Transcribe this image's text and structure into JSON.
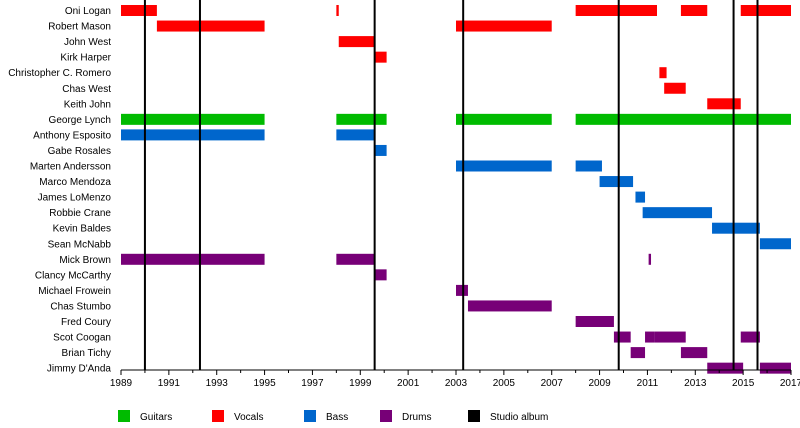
{
  "chart_data": {
    "type": "timeline",
    "title": "",
    "x_axis": {
      "min": 1989,
      "max": 2017,
      "ticks": [
        1989,
        1991,
        1993,
        1995,
        1997,
        1999,
        2001,
        2003,
        2005,
        2007,
        2009,
        2011,
        2013,
        2015,
        2017
      ]
    },
    "colors": {
      "Guitars": "#00bb00",
      "Vocals": "#ff0000",
      "Bass": "#0066cc",
      "Drums": "#770077",
      "Studio album": "#000000"
    },
    "members": [
      {
        "name": "Oni Logan",
        "bars": [
          {
            "role": "Vocals",
            "start": 1989.0,
            "end": 1990.5
          },
          {
            "role": "Vocals",
            "start": 1998.0,
            "end": 1998.1
          },
          {
            "role": "Vocals",
            "start": 2008.0,
            "end": 2011.4
          },
          {
            "role": "Vocals",
            "start": 2012.4,
            "end": 2013.5
          },
          {
            "role": "Vocals",
            "start": 2014.9,
            "end": 2017.0
          }
        ]
      },
      {
        "name": "Robert Mason",
        "bars": [
          {
            "role": "Vocals",
            "start": 1990.5,
            "end": 1995.0
          },
          {
            "role": "Vocals",
            "start": 2003.0,
            "end": 2007.0
          }
        ]
      },
      {
        "name": "John West",
        "bars": [
          {
            "role": "Vocals",
            "start": 1998.1,
            "end": 1999.6
          }
        ]
      },
      {
        "name": "Kirk Harper",
        "bars": [
          {
            "role": "Vocals",
            "start": 1999.6,
            "end": 2000.1
          }
        ]
      },
      {
        "name": "Christopher C. Romero",
        "bars": [
          {
            "role": "Vocals",
            "start": 2011.5,
            "end": 2011.8
          }
        ]
      },
      {
        "name": "Chas West",
        "bars": [
          {
            "role": "Vocals",
            "start": 2011.7,
            "end": 2012.6
          }
        ]
      },
      {
        "name": "Keith John",
        "bars": [
          {
            "role": "Vocals",
            "start": 2013.5,
            "end": 2014.9
          }
        ]
      },
      {
        "name": "George Lynch",
        "bars": [
          {
            "role": "Guitars",
            "start": 1989.0,
            "end": 1995.0
          },
          {
            "role": "Guitars",
            "start": 1998.0,
            "end": 2000.1
          },
          {
            "role": "Guitars",
            "start": 2003.0,
            "end": 2007.0
          },
          {
            "role": "Guitars",
            "start": 2008.0,
            "end": 2017.0
          }
        ]
      },
      {
        "name": "Anthony Esposito",
        "bars": [
          {
            "role": "Bass",
            "start": 1989.0,
            "end": 1995.0
          },
          {
            "role": "Bass",
            "start": 1998.0,
            "end": 1999.6
          }
        ]
      },
      {
        "name": "Gabe Rosales",
        "bars": [
          {
            "role": "Bass",
            "start": 1999.6,
            "end": 2000.1
          }
        ]
      },
      {
        "name": "Marten Andersson",
        "bars": [
          {
            "role": "Bass",
            "start": 2003.0,
            "end": 2007.0
          },
          {
            "role": "Bass",
            "start": 2008.0,
            "end": 2009.1
          }
        ]
      },
      {
        "name": "Marco Mendoza",
        "bars": [
          {
            "role": "Bass",
            "start": 2009.0,
            "end": 2010.4
          }
        ]
      },
      {
        "name": "James LoMenzo",
        "bars": [
          {
            "role": "Bass",
            "start": 2010.5,
            "end": 2010.9
          }
        ]
      },
      {
        "name": "Robbie Crane",
        "bars": [
          {
            "role": "Bass",
            "start": 2010.8,
            "end": 2013.7
          }
        ]
      },
      {
        "name": "Kevin Baldes",
        "bars": [
          {
            "role": "Bass",
            "start": 2013.7,
            "end": 2015.7
          }
        ]
      },
      {
        "name": "Sean McNabb",
        "bars": [
          {
            "role": "Bass",
            "start": 2015.7,
            "end": 2017.0
          }
        ]
      },
      {
        "name": "Mick Brown",
        "bars": [
          {
            "role": "Drums",
            "start": 1989.0,
            "end": 1995.0
          },
          {
            "role": "Drums",
            "start": 1998.0,
            "end": 1999.6
          },
          {
            "role": "Drums",
            "start": 2011.05,
            "end": 2011.15
          }
        ]
      },
      {
        "name": "Clancy McCarthy",
        "bars": [
          {
            "role": "Drums",
            "start": 1999.6,
            "end": 2000.1
          }
        ]
      },
      {
        "name": "Michael Frowein",
        "bars": [
          {
            "role": "Drums",
            "start": 2003.0,
            "end": 2003.5
          }
        ]
      },
      {
        "name": "Chas Stumbo",
        "bars": [
          {
            "role": "Drums",
            "start": 2003.5,
            "end": 2007.0
          }
        ]
      },
      {
        "name": "Fred Coury",
        "bars": [
          {
            "role": "Drums",
            "start": 2008.0,
            "end": 2009.6
          }
        ]
      },
      {
        "name": "Scot Coogan",
        "bars": [
          {
            "role": "Drums",
            "start": 2009.6,
            "end": 2010.3
          },
          {
            "role": "Drums",
            "start": 2010.9,
            "end": 2011.3
          },
          {
            "role": "Drums",
            "start": 2011.3,
            "end": 2012.6
          },
          {
            "role": "Drums",
            "start": 2014.9,
            "end": 2015.7
          }
        ]
      },
      {
        "name": "Brian Tichy",
        "bars": [
          {
            "role": "Drums",
            "start": 2010.3,
            "end": 2010.9
          },
          {
            "role": "Drums",
            "start": 2012.4,
            "end": 2013.5
          }
        ]
      },
      {
        "name": "Jimmy D'Anda",
        "bars": [
          {
            "role": "Drums",
            "start": 2013.5,
            "end": 2015.0
          },
          {
            "role": "Drums",
            "start": 2015.7,
            "end": 2017.0
          }
        ]
      }
    ],
    "studio_albums": [
      1990.0,
      1992.3,
      1999.6,
      2003.3,
      2009.8,
      2014.6,
      2015.6
    ],
    "legend": [
      "Guitars",
      "Vocals",
      "Bass",
      "Drums",
      "Studio album"
    ]
  }
}
